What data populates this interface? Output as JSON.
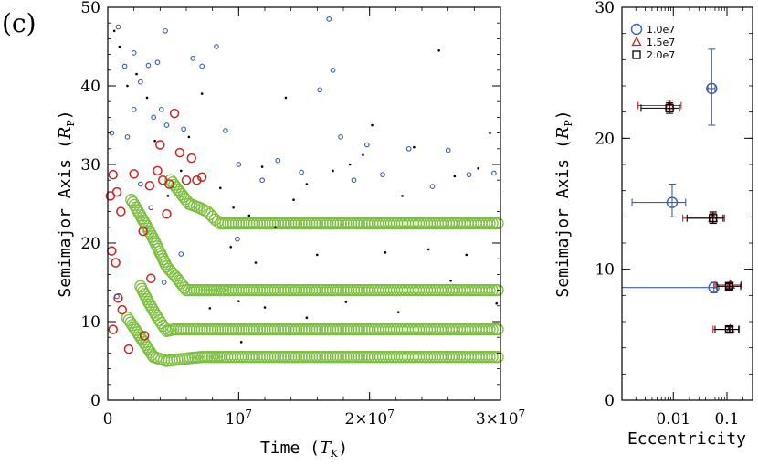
{
  "panel_label": "(c)",
  "colors": {
    "t1": "#3a5fb0",
    "t2": "#cc2222",
    "t3": "#000000",
    "migration": "#7cbf3f"
  },
  "chart_data": [
    {
      "type": "scatter",
      "title": "",
      "xlabel": "Time (T_K)",
      "xlabel_main": "Time (",
      "xlabel_sym": "T",
      "xlabel_sub": "K",
      "xlabel_close": ")",
      "ylabel": "Semimajor Axis (R_P)",
      "ylabel_main": "Semimajor Axis (",
      "ylabel_sym": "R",
      "ylabel_sub": "P",
      "ylabel_close": ")",
      "xlim": [
        0,
        30000000
      ],
      "ylim": [
        0,
        50
      ],
      "x_ticks": [
        {
          "value": 0,
          "label": "0"
        },
        {
          "value": 10000000,
          "label": "10^7"
        },
        {
          "value": 20000000,
          "label": "2×10^7"
        },
        {
          "value": 30000000,
          "label": "3×10^7"
        }
      ],
      "y_ticks": [
        {
          "value": 0,
          "label": "0"
        },
        {
          "value": 10,
          "label": "10"
        },
        {
          "value": 20,
          "label": "20"
        },
        {
          "value": 30,
          "label": "30"
        },
        {
          "value": 40,
          "label": "40"
        },
        {
          "value": 50,
          "label": "50"
        }
      ],
      "series": [
        {
          "marker": "open-circle-large",
          "color": "#7cbf3f",
          "tracks": [
            {
              "x": [
                1800000,
                2500000,
                3500000,
                4500000,
                5300000,
                6000000,
                7000000,
                8500000,
                9000000,
                12000000,
                16000000,
                20000000,
                25000000,
                30000000
              ],
              "y": [
                25.5,
                23.5,
                20.5,
                17,
                15.5,
                14,
                14,
                14,
                14,
                14,
                14,
                14,
                14,
                14
              ]
            },
            {
              "x": [
                1500000,
                2500000,
                3500000,
                4500000,
                5500000,
                6500000,
                7200000,
                8000000,
                8500000,
                12000000,
                16000000,
                20000000,
                25000000,
                30000000
              ],
              "y": [
                10.5,
                8,
                5.5,
                5,
                5.2,
                5.4,
                5.5,
                5.5,
                5.5,
                5.5,
                5.5,
                5.5,
                5.5,
                5.5
              ]
            },
            {
              "x": [
                2500000,
                3100000,
                3800000,
                4500000,
                5000000,
                6000000,
                8000000,
                12000000,
                16000000,
                20000000,
                25000000,
                30000000
              ],
              "y": [
                14.5,
                12.5,
                10.5,
                8.8,
                9,
                9,
                9,
                9,
                9,
                9,
                9,
                9
              ]
            },
            {
              "x": [
                4800000,
                5500000,
                6200000,
                7000000,
                7600000,
                8200000,
                8600000,
                12000000,
                16000000,
                20000000,
                25000000,
                30000000
              ],
              "y": [
                28,
                26.5,
                25,
                24.5,
                24,
                23,
                22.5,
                22.5,
                22.5,
                22.5,
                22.5,
                22.5
              ]
            }
          ]
        },
        {
          "marker": "open-circle",
          "color": "#cc2222",
          "points": [
            {
              "x": 200000,
              "y": 26
            },
            {
              "x": 400000,
              "y": 28.7
            },
            {
              "x": 700000,
              "y": 26.5
            },
            {
              "x": 1000000,
              "y": 24
            },
            {
              "x": 300000,
              "y": 19
            },
            {
              "x": 600000,
              "y": 17.5
            },
            {
              "x": 800000,
              "y": 13
            },
            {
              "x": 1100000,
              "y": 11.5
            },
            {
              "x": 400000,
              "y": 9
            },
            {
              "x": 2000000,
              "y": 28.8
            },
            {
              "x": 2700000,
              "y": 21.5
            },
            {
              "x": 3200000,
              "y": 27.3
            },
            {
              "x": 3800000,
              "y": 29.2
            },
            {
              "x": 4000000,
              "y": 32.5
            },
            {
              "x": 4200000,
              "y": 28
            },
            {
              "x": 4500000,
              "y": 23.7
            },
            {
              "x": 4700000,
              "y": 27.5
            },
            {
              "x": 5100000,
              "y": 36.5
            },
            {
              "x": 5500000,
              "y": 31.5
            },
            {
              "x": 6000000,
              "y": 28
            },
            {
              "x": 6400000,
              "y": 30.8
            },
            {
              "x": 6800000,
              "y": 28
            },
            {
              "x": 7200000,
              "y": 28.4
            },
            {
              "x": 3300000,
              "y": 15.5
            },
            {
              "x": 2800000,
              "y": 8.2
            },
            {
              "x": 1600000,
              "y": 6.5
            }
          ]
        },
        {
          "marker": "open-circle-small",
          "color": "#3a5fb0",
          "points": [
            {
              "x": 800000,
              "y": 47.5
            },
            {
              "x": 1300000,
              "y": 42.5
            },
            {
              "x": 2000000,
              "y": 44.2
            },
            {
              "x": 2500000,
              "y": 40.5
            },
            {
              "x": 3100000,
              "y": 42.6
            },
            {
              "x": 3800000,
              "y": 43
            },
            {
              "x": 4400000,
              "y": 47
            },
            {
              "x": 3500000,
              "y": 36
            },
            {
              "x": 5800000,
              "y": 34.5
            },
            {
              "x": 6500000,
              "y": 43.5
            },
            {
              "x": 7200000,
              "y": 42.5
            },
            {
              "x": 8300000,
              "y": 45
            },
            {
              "x": 9000000,
              "y": 34.3
            },
            {
              "x": 10000000,
              "y": 30
            },
            {
              "x": 11800000,
              "y": 28
            },
            {
              "x": 13000000,
              "y": 30.5
            },
            {
              "x": 14800000,
              "y": 29
            },
            {
              "x": 16200000,
              "y": 39.5
            },
            {
              "x": 17200000,
              "y": 42
            },
            {
              "x": 17800000,
              "y": 33.5
            },
            {
              "x": 18800000,
              "y": 28
            },
            {
              "x": 19800000,
              "y": 32.5
            },
            {
              "x": 21000000,
              "y": 28.7
            },
            {
              "x": 23000000,
              "y": 32
            },
            {
              "x": 24800000,
              "y": 27.2
            },
            {
              "x": 26000000,
              "y": 31.8
            },
            {
              "x": 27600000,
              "y": 28.7
            },
            {
              "x": 29500000,
              "y": 28.9
            },
            {
              "x": 16900000,
              "y": 48.5
            },
            {
              "x": 3300000,
              "y": 24.5
            },
            {
              "x": 4300000,
              "y": 15
            },
            {
              "x": 700000,
              "y": 13.2
            },
            {
              "x": 5600000,
              "y": 18.6
            },
            {
              "x": 9900000,
              "y": 20.5
            },
            {
              "x": 2500000,
              "y": 27.5
            },
            {
              "x": 2000000,
              "y": 37
            },
            {
              "x": 4100000,
              "y": 37
            },
            {
              "x": 300000,
              "y": 34
            },
            {
              "x": 4500000,
              "y": 35
            },
            {
              "x": 1500000,
              "y": 33.5
            }
          ]
        },
        {
          "marker": "dot",
          "color": "#000000",
          "points": [
            {
              "x": 500000,
              "y": 47
            },
            {
              "x": 900000,
              "y": 45
            },
            {
              "x": 1500000,
              "y": 40
            },
            {
              "x": 2200000,
              "y": 41.5
            },
            {
              "x": 3000000,
              "y": 38.5
            },
            {
              "x": 3600000,
              "y": 33
            },
            {
              "x": 4600000,
              "y": 26
            },
            {
              "x": 5600000,
              "y": 29.2
            },
            {
              "x": 6200000,
              "y": 33.5
            },
            {
              "x": 7200000,
              "y": 39
            },
            {
              "x": 8600000,
              "y": 27
            },
            {
              "x": 9600000,
              "y": 24.5
            },
            {
              "x": 10800000,
              "y": 23.5
            },
            {
              "x": 11800000,
              "y": 29.7
            },
            {
              "x": 12800000,
              "y": 22
            },
            {
              "x": 13600000,
              "y": 38.5
            },
            {
              "x": 14200000,
              "y": 25.5
            },
            {
              "x": 15200000,
              "y": 27.5
            },
            {
              "x": 16000000,
              "y": 18.5
            },
            {
              "x": 17200000,
              "y": 29.2
            },
            {
              "x": 18500000,
              "y": 30
            },
            {
              "x": 19500000,
              "y": 31.2
            },
            {
              "x": 20200000,
              "y": 35
            },
            {
              "x": 21200000,
              "y": 18.8
            },
            {
              "x": 22500000,
              "y": 26
            },
            {
              "x": 23400000,
              "y": 32.2
            },
            {
              "x": 24500000,
              "y": 19.2
            },
            {
              "x": 25300000,
              "y": 44.5
            },
            {
              "x": 26500000,
              "y": 28.5
            },
            {
              "x": 27400000,
              "y": 18.5
            },
            {
              "x": 28300000,
              "y": 29.5
            },
            {
              "x": 29200000,
              "y": 34
            },
            {
              "x": 29700000,
              "y": 12.3
            },
            {
              "x": 26200000,
              "y": 15.2
            },
            {
              "x": 22200000,
              "y": 11.2
            },
            {
              "x": 18200000,
              "y": 12.5
            },
            {
              "x": 15200000,
              "y": 10.5
            },
            {
              "x": 12000000,
              "y": 11.8
            },
            {
              "x": 10200000,
              "y": 7.4
            },
            {
              "x": 9400000,
              "y": 19.5
            },
            {
              "x": 11300000,
              "y": 17.5
            },
            {
              "x": 7800000,
              "y": 11.7
            },
            {
              "x": 10000000,
              "y": 12.6
            }
          ]
        }
      ]
    },
    {
      "type": "scatter",
      "title": "",
      "xlabel": "Eccentricity",
      "ylabel": "Semimajor Axis (R_P)",
      "ylabel_main": "Semimajor Axis (",
      "ylabel_sym": "R",
      "ylabel_sub": "P",
      "ylabel_close": ")",
      "x_scale": "log",
      "xlim": [
        0.0011,
        0.3
      ],
      "ylim": [
        0,
        30
      ],
      "x_ticks": [
        {
          "value": 0.01,
          "label": "0.01"
        },
        {
          "value": 0.1,
          "label": "0.1"
        }
      ],
      "y_ticks": [
        {
          "value": 0,
          "label": "0"
        },
        {
          "value": 10,
          "label": "10"
        },
        {
          "value": 20,
          "label": "20"
        },
        {
          "value": 30,
          "label": "30"
        }
      ],
      "legend": {
        "position": "top-left",
        "entries": [
          "1.0e7",
          "1.5e7",
          "2.0e7"
        ]
      },
      "series": [
        {
          "name": "1.0e7",
          "marker": "circle",
          "color": "#3a5fb0",
          "points": [
            {
              "x": 0.052,
              "y": 23.8,
              "xerr": [
                0.044,
                0.06
              ],
              "yerr": [
                21.0,
                26.8
              ]
            },
            {
              "x": 0.0095,
              "y": 15.1,
              "xerr": [
                0.0017,
                0.017
              ],
              "yerr": [
                14.0,
                16.5
              ]
            },
            {
              "x": 0.057,
              "y": 8.6,
              "xerr": [
                0.001,
                0.065
              ],
              "yerr": [
                8.2,
                9.0
              ]
            }
          ]
        },
        {
          "name": "1.5e7",
          "marker": "triangle",
          "color": "#cc2222",
          "points": [
            {
              "x": 0.0085,
              "y": 22.5,
              "xerr": [
                0.0022,
                0.014
              ],
              "yerr": [
                22.1,
                22.9
              ]
            },
            {
              "x": 0.055,
              "y": 13.9,
              "xerr": [
                0.015,
                0.09
              ],
              "yerr": [
                13.5,
                14.4
              ]
            },
            {
              "x": 0.115,
              "y": 8.8,
              "xerr": [
                0.06,
                0.185
              ],
              "yerr": [
                8.6,
                9.0
              ]
            },
            {
              "x": 0.115,
              "y": 5.4,
              "xerr": [
                0.055,
                0.17
              ],
              "yerr": [
                5.2,
                5.6
              ]
            }
          ]
        },
        {
          "name": "2.0e7",
          "marker": "square",
          "color": "#000000",
          "points": [
            {
              "x": 0.0085,
              "y": 22.3,
              "xerr": [
                0.0025,
                0.013
              ],
              "yerr": [
                21.9,
                22.7
              ]
            },
            {
              "x": 0.055,
              "y": 13.9,
              "xerr": [
                0.018,
                0.085
              ],
              "yerr": [
                13.5,
                14.3
              ]
            },
            {
              "x": 0.11,
              "y": 8.7,
              "xerr": [
                0.065,
                0.18
              ],
              "yerr": [
                8.5,
                8.9
              ]
            },
            {
              "x": 0.11,
              "y": 5.4,
              "xerr": [
                0.06,
                0.165
              ],
              "yerr": [
                5.2,
                5.6
              ]
            }
          ]
        }
      ]
    }
  ]
}
